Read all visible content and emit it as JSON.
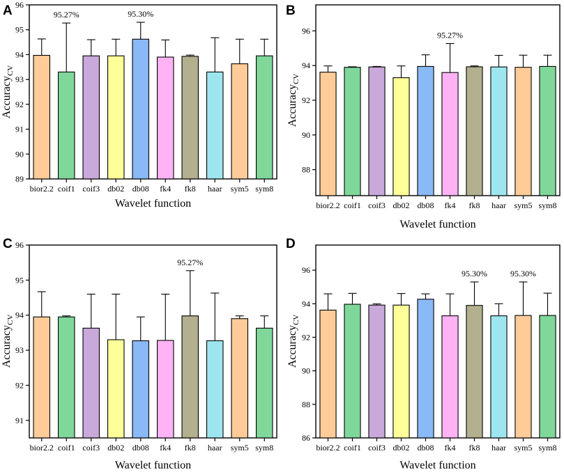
{
  "figure": {
    "x_label": "Wavelet function",
    "y_label_main": "Accuracy",
    "y_label_sub": "CV"
  },
  "colors": {
    "bior2.2": "#ffcc99",
    "coif1": "#7fd79a",
    "coif3": "#c8a9d9",
    "db02": "#ffff99",
    "db08": "#8ab9f7",
    "fk4": "#ffb3f5",
    "fk8": "#b2b08e",
    "haar": "#9ee6ef",
    "sym5": "#ffcc99",
    "sym8": "#7fd79a"
  },
  "chart_data": [
    {
      "panel": "A",
      "type": "bar",
      "title": "",
      "xlabel": "Wavelet function",
      "ylabel": "AccuracyCV",
      "categories": [
        "bior2.2",
        "coif1",
        "coif3",
        "db02",
        "db08",
        "fk4",
        "fk8",
        "haar",
        "sym5",
        "sym8"
      ],
      "values": [
        93.97,
        93.3,
        93.95,
        93.95,
        94.62,
        93.9,
        93.93,
        93.3,
        93.63,
        93.95
      ],
      "errors": [
        0.66,
        1.97,
        0.65,
        0.67,
        0.68,
        0.69,
        0.05,
        1.38,
        0.99,
        0.67
      ],
      "ylim": [
        89,
        96
      ],
      "yticks": [
        89,
        90,
        91,
        92,
        93,
        94,
        95,
        96
      ],
      "annotations": [
        {
          "category": "coif1",
          "text": "95.27%"
        },
        {
          "category": "db08",
          "text": "95.30%"
        }
      ]
    },
    {
      "panel": "B",
      "type": "bar",
      "title": "",
      "xlabel": "Wavelet function",
      "ylabel": "AccuracyCV",
      "categories": [
        "bior2.2",
        "coif1",
        "coif3",
        "db02",
        "db08",
        "fk4",
        "fk8",
        "haar",
        "sym5",
        "sym8"
      ],
      "values": [
        93.62,
        93.9,
        93.92,
        93.3,
        93.95,
        93.6,
        93.93,
        93.92,
        93.9,
        93.95
      ],
      "errors": [
        0.36,
        0.03,
        0.03,
        0.68,
        0.67,
        1.67,
        0.05,
        0.67,
        0.7,
        0.65
      ],
      "ylim": [
        86.5,
        97.5
      ],
      "yticks": [
        88,
        90,
        92,
        94,
        96
      ],
      "annotations": [
        {
          "category": "fk4",
          "text": "95.27%"
        }
      ]
    },
    {
      "panel": "C",
      "type": "bar",
      "title": "",
      "xlabel": "Wavelet function",
      "ylabel": "AccuracyCV",
      "categories": [
        "bior2.2",
        "coif1",
        "coif3",
        "db02",
        "db08",
        "fk4",
        "fk8",
        "haar",
        "sym5",
        "sym8"
      ],
      "values": [
        93.95,
        93.95,
        93.63,
        93.3,
        93.27,
        93.28,
        93.98,
        93.27,
        93.9,
        93.63
      ],
      "errors": [
        0.72,
        0.03,
        0.97,
        1.3,
        0.68,
        1.32,
        1.29,
        1.36,
        0.08,
        0.35
      ],
      "ylim": [
        90.5,
        96
      ],
      "yticks": [
        91,
        92,
        93,
        94,
        95,
        96
      ],
      "annotations": [
        {
          "category": "fk8",
          "text": "95.27%"
        }
      ]
    },
    {
      "panel": "D",
      "type": "bar",
      "title": "",
      "xlabel": "Wavelet function",
      "ylabel": "AccuracyCV",
      "categories": [
        "bior2.2",
        "coif1",
        "coif3",
        "db02",
        "db08",
        "fk4",
        "fk8",
        "haar",
        "sym5",
        "sym8"
      ],
      "values": [
        93.62,
        93.97,
        93.92,
        93.92,
        94.27,
        93.28,
        93.9,
        93.28,
        93.3,
        93.3
      ],
      "errors": [
        0.97,
        0.65,
        0.07,
        0.69,
        0.32,
        1.31,
        1.4,
        0.72,
        2.0,
        1.33
      ],
      "ylim": [
        86,
        97.5
      ],
      "yticks": [
        86,
        88,
        90,
        92,
        94,
        96
      ],
      "annotations": [
        {
          "category": "fk8",
          "text": "95.30%"
        },
        {
          "category": "sym5",
          "text": "95.30%"
        }
      ]
    }
  ]
}
